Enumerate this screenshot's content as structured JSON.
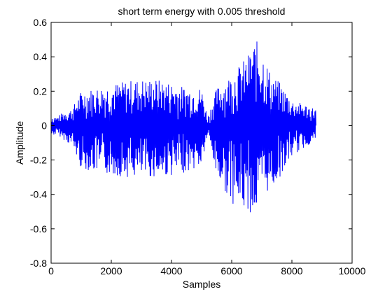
{
  "chart_data": {
    "type": "line",
    "title": "short term energy with 0.005 threshold",
    "xlabel": "Samples",
    "ylabel": "Amplitude",
    "xlim": [
      0,
      10000
    ],
    "ylim": [
      -0.8,
      0.6
    ],
    "xticks": [
      0,
      2000,
      4000,
      6000,
      8000,
      10000
    ],
    "xtick_labels": [
      "0",
      "2000",
      "4000",
      "6000",
      "8000",
      "10000"
    ],
    "yticks": [
      -0.8,
      -0.6,
      -0.4,
      -0.2,
      0,
      0.2,
      0.4,
      0.6
    ],
    "ytick_labels": [
      "-0.8",
      "-0.6",
      "-0.4",
      "-0.2",
      "0",
      "0.2",
      "0.4",
      "0.6"
    ],
    "grid": false,
    "legend": "none",
    "series": [
      {
        "color": "#0000ff",
        "style": "dense waveform oscillating symmetrically about 0",
        "x": [
          0,
          200,
          400,
          700,
          1000,
          1500,
          2000,
          2500,
          3000,
          3500,
          4000,
          4500,
          5000,
          5200,
          5500,
          6000,
          6500,
          6800,
          7000,
          7300,
          7600,
          8000,
          8500,
          8800
        ],
        "upper": [
          0.06,
          0.05,
          0.08,
          0.1,
          0.2,
          0.22,
          0.24,
          0.26,
          0.27,
          0.27,
          0.25,
          0.22,
          0.22,
          0.05,
          0.22,
          0.3,
          0.4,
          0.5,
          0.45,
          0.3,
          0.25,
          0.15,
          0.12,
          0.1
        ],
        "lower": [
          -0.06,
          -0.05,
          -0.08,
          -0.12,
          -0.25,
          -0.27,
          -0.29,
          -0.3,
          -0.3,
          -0.3,
          -0.29,
          -0.27,
          -0.24,
          -0.05,
          -0.3,
          -0.45,
          -0.5,
          -0.52,
          -0.4,
          -0.38,
          -0.3,
          -0.18,
          -0.12,
          -0.08
        ]
      }
    ]
  }
}
